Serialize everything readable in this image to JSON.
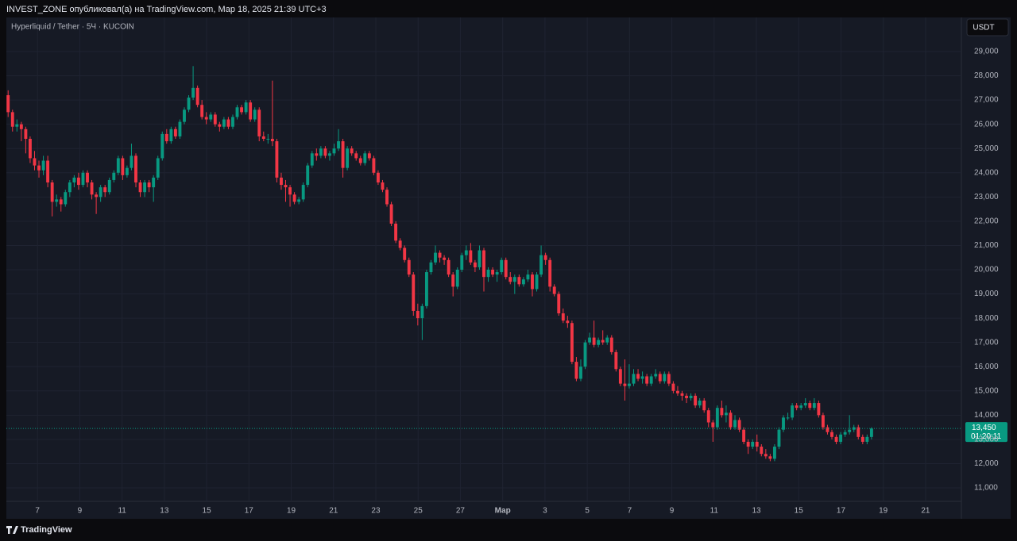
{
  "header": "INVEST_ZONE опубликовал(а) на TradingView.com, Мар 18, 2025 21:39 UTC+3",
  "footer": "TradingView",
  "chart_data": {
    "type": "candlestick",
    "title": "Hyperliquid / Tether · 5Ч · KUCOIN",
    "currency": "USDT",
    "up_color": "#089981",
    "down_color": "#f23645",
    "grid": true,
    "xlim": [
      -0.4,
      216.4
    ],
    "xticks": [
      {
        "value": 6.67,
        "label": "7"
      },
      {
        "value": 16.27,
        "label": "9"
      },
      {
        "value": 25.87,
        "label": "11"
      },
      {
        "value": 35.47,
        "label": "13"
      },
      {
        "value": 45.07,
        "label": "15"
      },
      {
        "value": 54.67,
        "label": "17"
      },
      {
        "value": 64.27,
        "label": "19"
      },
      {
        "value": 73.87,
        "label": "21"
      },
      {
        "value": 83.47,
        "label": "23"
      },
      {
        "value": 93.07,
        "label": "25"
      },
      {
        "value": 102.67,
        "label": "27"
      },
      {
        "value": 112.27,
        "label": "Мар"
      },
      {
        "value": 121.87,
        "label": "3"
      },
      {
        "value": 131.47,
        "label": "5"
      },
      {
        "value": 141.07,
        "label": "7"
      },
      {
        "value": 150.67,
        "label": "9"
      },
      {
        "value": 160.27,
        "label": "11"
      },
      {
        "value": 169.87,
        "label": "13"
      },
      {
        "value": 179.47,
        "label": "15"
      },
      {
        "value": 189.07,
        "label": "17"
      },
      {
        "value": 198.67,
        "label": "19"
      },
      {
        "value": 208.27,
        "label": "21"
      }
    ],
    "ylim": [
      9724,
      30407
    ],
    "yticks": [
      {
        "value": 11000,
        "label": "11,000"
      },
      {
        "value": 12000,
        "label": "12,000"
      },
      {
        "value": 13000,
        "label": "13,000"
      },
      {
        "value": 14000,
        "label": "14,000"
      },
      {
        "value": 15000,
        "label": "15,000"
      },
      {
        "value": 16000,
        "label": "16,000"
      },
      {
        "value": 17000,
        "label": "17,000"
      },
      {
        "value": 18000,
        "label": "18,000"
      },
      {
        "value": 19000,
        "label": "19,000"
      },
      {
        "value": 20000,
        "label": "20,000"
      },
      {
        "value": 21000,
        "label": "21,000"
      },
      {
        "value": 22000,
        "label": "22,000"
      },
      {
        "value": 23000,
        "label": "23,000"
      },
      {
        "value": 24000,
        "label": "24,000"
      },
      {
        "value": 25000,
        "label": "25,000"
      },
      {
        "value": 26000,
        "label": "26,000"
      },
      {
        "value": 27000,
        "label": "27,000"
      },
      {
        "value": 28000,
        "label": "28,000"
      },
      {
        "value": 29000,
        "label": "29,000"
      }
    ],
    "last_price": {
      "value": 13450,
      "label": "13,450"
    },
    "countdown": "01:20:11",
    "candles": [
      [
        27200,
        27400,
        26300,
        26500
      ],
      [
        26500,
        26600,
        25700,
        25900
      ],
      [
        25900,
        26200,
        25700,
        26000
      ],
      [
        26000,
        26100,
        25300,
        25800
      ],
      [
        25800,
        25900,
        24800,
        25400
      ],
      [
        25400,
        25500,
        24400,
        24600
      ],
      [
        24600,
        24900,
        24100,
        24300
      ],
      [
        24300,
        24500,
        23800,
        24100
      ],
      [
        24100,
        24700,
        23900,
        24500
      ],
      [
        24500,
        24700,
        23400,
        23600
      ],
      [
        23600,
        23700,
        22200,
        22800
      ],
      [
        22800,
        23100,
        22600,
        22900
      ],
      [
        22900,
        23000,
        22400,
        22700
      ],
      [
        22700,
        23300,
        22600,
        23200
      ],
      [
        23200,
        23700,
        23000,
        23600
      ],
      [
        23600,
        23900,
        23400,
        23800
      ],
      [
        23800,
        24000,
        23300,
        23500
      ],
      [
        23500,
        24100,
        23400,
        24000
      ],
      [
        24000,
        24100,
        23400,
        23600
      ],
      [
        23600,
        23700,
        22900,
        23100
      ],
      [
        23100,
        23200,
        22300,
        23000
      ],
      [
        23000,
        23500,
        22800,
        23400
      ],
      [
        23400,
        23500,
        23000,
        23200
      ],
      [
        23200,
        23800,
        23100,
        23700
      ],
      [
        23700,
        24100,
        23600,
        24000
      ],
      [
        24000,
        24700,
        23900,
        24600
      ],
      [
        24600,
        24700,
        23700,
        23900
      ],
      [
        23900,
        24300,
        23800,
        24200
      ],
      [
        24200,
        25200,
        24100,
        24700
      ],
      [
        24700,
        24800,
        23400,
        23600
      ],
      [
        23600,
        23700,
        23000,
        23200
      ],
      [
        23200,
        23700,
        23000,
        23600
      ],
      [
        23600,
        23700,
        23200,
        23400
      ],
      [
        23400,
        23900,
        22800,
        23800
      ],
      [
        23800,
        24700,
        23700,
        24600
      ],
      [
        24600,
        25700,
        24500,
        25600
      ],
      [
        25600,
        25800,
        25200,
        25300
      ],
      [
        25300,
        25900,
        25200,
        25800
      ],
      [
        25800,
        25900,
        25400,
        25500
      ],
      [
        25500,
        26200,
        25400,
        26100
      ],
      [
        26100,
        26700,
        26000,
        26600
      ],
      [
        26600,
        27200,
        26500,
        27100
      ],
      [
        27100,
        28400,
        27000,
        27500
      ],
      [
        27500,
        27600,
        26700,
        26800
      ],
      [
        26800,
        27000,
        26200,
        26300
      ],
      [
        26300,
        26500,
        26000,
        26200
      ],
      [
        26200,
        26500,
        26100,
        26400
      ],
      [
        26400,
        26500,
        25900,
        26000
      ],
      [
        26000,
        26100,
        25700,
        25900
      ],
      [
        25900,
        26300,
        25800,
        26200
      ],
      [
        26200,
        26300,
        25800,
        25900
      ],
      [
        25900,
        26400,
        25800,
        26300
      ],
      [
        26300,
        26800,
        26200,
        26700
      ],
      [
        26700,
        26800,
        26400,
        26500
      ],
      [
        26500,
        27000,
        26400,
        26900
      ],
      [
        26900,
        27000,
        26100,
        26200
      ],
      [
        26200,
        26700,
        26100,
        26600
      ],
      [
        26600,
        26700,
        25300,
        25500
      ],
      [
        25500,
        25700,
        25300,
        25400
      ],
      [
        25400,
        25600,
        25200,
        25400
      ],
      [
        25400,
        27800,
        25100,
        25300
      ],
      [
        25300,
        25400,
        23600,
        23800
      ],
      [
        23800,
        24000,
        23300,
        23500
      ],
      [
        23500,
        23700,
        22800,
        23400
      ],
      [
        23400,
        23500,
        22600,
        23100
      ],
      [
        23100,
        23200,
        22700,
        22800
      ],
      [
        22800,
        23000,
        22700,
        22900
      ],
      [
        22900,
        23600,
        22800,
        23500
      ],
      [
        23500,
        24400,
        23400,
        24300
      ],
      [
        24300,
        24900,
        24200,
        24800
      ],
      [
        24800,
        25000,
        24500,
        24700
      ],
      [
        24700,
        25100,
        24600,
        25000
      ],
      [
        25000,
        25100,
        24600,
        24700
      ],
      [
        24700,
        24900,
        24500,
        24800
      ],
      [
        24800,
        25200,
        24700,
        25000
      ],
      [
        25000,
        25800,
        24900,
        25300
      ],
      [
        25300,
        25400,
        23800,
        24200
      ],
      [
        24200,
        25100,
        24100,
        25000
      ],
      [
        25000,
        25100,
        24700,
        24800
      ],
      [
        24800,
        24900,
        24500,
        24600
      ],
      [
        24600,
        24700,
        24300,
        24400
      ],
      [
        24400,
        24900,
        24300,
        24800
      ],
      [
        24800,
        24900,
        24500,
        24600
      ],
      [
        24600,
        24700,
        23900,
        24000
      ],
      [
        24000,
        24100,
        23500,
        23600
      ],
      [
        23600,
        23700,
        23200,
        23300
      ],
      [
        23300,
        23400,
        22600,
        22700
      ],
      [
        22700,
        22800,
        21800,
        21900
      ],
      [
        21900,
        22000,
        21100,
        21200
      ],
      [
        21200,
        21300,
        20800,
        20900
      ],
      [
        20900,
        21000,
        20300,
        20400
      ],
      [
        20400,
        20500,
        19700,
        19800
      ],
      [
        19800,
        19900,
        18100,
        18300
      ],
      [
        18300,
        18600,
        17700,
        18000
      ],
      [
        18000,
        18600,
        17100,
        18500
      ],
      [
        18500,
        20000,
        18400,
        19900
      ],
      [
        19900,
        20400,
        19800,
        20300
      ],
      [
        20300,
        21000,
        20200,
        20700
      ],
      [
        20700,
        20800,
        20300,
        20500
      ],
      [
        20500,
        20600,
        20200,
        20400
      ],
      [
        20400,
        20500,
        19700,
        19800
      ],
      [
        19800,
        19900,
        18900,
        19300
      ],
      [
        19300,
        20100,
        19200,
        20000
      ],
      [
        20000,
        20700,
        19900,
        20600
      ],
      [
        20600,
        21000,
        20400,
        20800
      ],
      [
        20800,
        21100,
        20200,
        20300
      ],
      [
        20300,
        20400,
        19900,
        20100
      ],
      [
        20100,
        21000,
        20000,
        20800
      ],
      [
        20800,
        20900,
        19100,
        19700
      ],
      [
        19700,
        20100,
        19500,
        20000
      ],
      [
        20000,
        20100,
        19700,
        19800
      ],
      [
        19800,
        20000,
        19500,
        19900
      ],
      [
        19900,
        20500,
        19800,
        20400
      ],
      [
        20400,
        20500,
        19600,
        19700
      ],
      [
        19700,
        19900,
        19400,
        19500
      ],
      [
        19500,
        19800,
        19000,
        19700
      ],
      [
        19700,
        19800,
        19300,
        19400
      ],
      [
        19400,
        19700,
        19300,
        19600
      ],
      [
        19600,
        20000,
        19500,
        19800
      ],
      [
        19800,
        19900,
        18900,
        19200
      ],
      [
        19200,
        19900,
        19100,
        19800
      ],
      [
        19800,
        21000,
        19700,
        20600
      ],
      [
        20600,
        20700,
        20200,
        20400
      ],
      [
        20400,
        20500,
        19100,
        19300
      ],
      [
        19300,
        19400,
        18900,
        19000
      ],
      [
        19000,
        19100,
        18100,
        18200
      ],
      [
        18200,
        18400,
        17800,
        17900
      ],
      [
        17900,
        18100,
        17600,
        17800
      ],
      [
        17800,
        17900,
        16100,
        16200
      ],
      [
        16200,
        16400,
        15400,
        15500
      ],
      [
        15500,
        16300,
        15400,
        16000
      ],
      [
        16000,
        17100,
        15900,
        17000
      ],
      [
        17000,
        17400,
        16900,
        17200
      ],
      [
        17200,
        17900,
        16800,
        16900
      ],
      [
        16900,
        17200,
        16800,
        17100
      ],
      [
        17100,
        17500,
        16900,
        17000
      ],
      [
        17000,
        17300,
        16900,
        17200
      ],
      [
        17200,
        17300,
        16500,
        16600
      ],
      [
        16600,
        16700,
        15800,
        15900
      ],
      [
        15900,
        16000,
        15200,
        15300
      ],
      [
        15300,
        16300,
        14600,
        15200
      ],
      [
        15200,
        16100,
        15100,
        15300
      ],
      [
        15300,
        15900,
        15200,
        15700
      ],
      [
        15700,
        15900,
        15400,
        15500
      ],
      [
        15500,
        15800,
        15300,
        15600
      ],
      [
        15600,
        15700,
        15200,
        15300
      ],
      [
        15300,
        15700,
        15200,
        15600
      ],
      [
        15600,
        15900,
        15500,
        15700
      ],
      [
        15700,
        15800,
        15300,
        15400
      ],
      [
        15400,
        15800,
        15300,
        15700
      ],
      [
        15700,
        15800,
        15200,
        15300
      ],
      [
        15300,
        15400,
        14900,
        15000
      ],
      [
        15000,
        15200,
        14800,
        14900
      ],
      [
        14900,
        15000,
        14600,
        14800
      ],
      [
        14800,
        14900,
        14500,
        14700
      ],
      [
        14700,
        14900,
        14600,
        14800
      ],
      [
        14800,
        14900,
        14300,
        14400
      ],
      [
        14400,
        14700,
        14300,
        14600
      ],
      [
        14600,
        14700,
        14100,
        14200
      ],
      [
        14200,
        14300,
        13500,
        13700
      ],
      [
        13700,
        13800,
        12900,
        13500
      ],
      [
        13500,
        14400,
        13400,
        14300
      ],
      [
        14300,
        14600,
        13900,
        14000
      ],
      [
        14000,
        14400,
        13700,
        14100
      ],
      [
        14100,
        14200,
        13400,
        13500
      ],
      [
        13500,
        14000,
        13400,
        13800
      ],
      [
        13800,
        13900,
        13300,
        13400
      ],
      [
        13400,
        13500,
        12800,
        12900
      ],
      [
        12900,
        13000,
        12400,
        12700
      ],
      [
        12700,
        13000,
        12600,
        12900
      ],
      [
        12900,
        13200,
        12500,
        12700
      ],
      [
        12700,
        12800,
        12300,
        12400
      ],
      [
        12400,
        12600,
        12200,
        12300
      ],
      [
        12300,
        12400,
        12100,
        12200
      ],
      [
        12200,
        12800,
        12100,
        12700
      ],
      [
        12700,
        13500,
        12600,
        13400
      ],
      [
        13400,
        14000,
        13300,
        13900
      ],
      [
        13900,
        14100,
        13800,
        13900
      ],
      [
        13900,
        14500,
        13800,
        14400
      ],
      [
        14400,
        14500,
        14200,
        14300
      ],
      [
        14300,
        14500,
        14200,
        14400
      ],
      [
        14400,
        14700,
        14300,
        14500
      ],
      [
        14500,
        14600,
        14200,
        14300
      ],
      [
        14300,
        14700,
        14200,
        14500
      ],
      [
        14500,
        14600,
        13900,
        14000
      ],
      [
        14000,
        14100,
        13400,
        13500
      ],
      [
        13500,
        13600,
        13200,
        13300
      ],
      [
        13300,
        13400,
        13000,
        13100
      ],
      [
        13100,
        13200,
        12800,
        12900
      ],
      [
        12900,
        13300,
        12800,
        13200
      ],
      [
        13200,
        13400,
        13100,
        13300
      ],
      [
        13300,
        14000,
        13200,
        13400
      ],
      [
        13400,
        13600,
        13300,
        13500
      ],
      [
        13500,
        13600,
        13000,
        13100
      ],
      [
        13100,
        13200,
        12800,
        12900
      ],
      [
        12900,
        13200,
        12800,
        13100
      ],
      [
        13100,
        13500,
        13000,
        13450
      ]
    ]
  }
}
